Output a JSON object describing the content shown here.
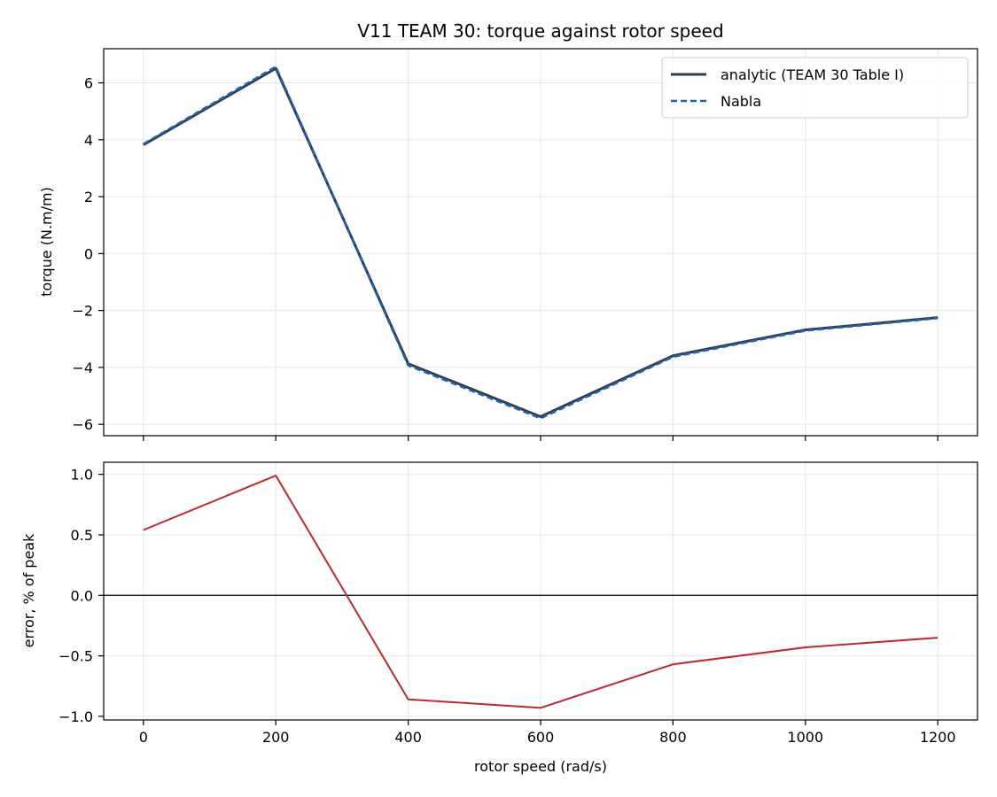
{
  "chart_data": [
    {
      "type": "line",
      "title": "V11 TEAM 30: torque against rotor speed",
      "xlabel": "",
      "ylabel": "torque (N.m/m)",
      "xlim": [
        -60,
        1260
      ],
      "ylim": [
        -6.4,
        7.2
      ],
      "x_ticks": [
        0,
        200,
        400,
        600,
        800,
        1000,
        1200
      ],
      "y_ticks": [
        -6,
        -4,
        -2,
        0,
        2,
        4,
        6
      ],
      "y_tick_labels": [
        "−6",
        "−4",
        "−2",
        "0",
        "2",
        "4",
        "6"
      ],
      "grid": true,
      "legend_position": "top-right",
      "x": [
        0,
        200,
        400,
        600,
        800,
        1000,
        1200
      ],
      "series": [
        {
          "name": "analytic (TEAM 30 Table I)",
          "values": [
            3.82,
            6.51,
            -3.87,
            -5.73,
            -3.59,
            -2.68,
            -2.25
          ],
          "color": "#2f3d4c",
          "style": "solid"
        },
        {
          "name": "Nabla",
          "values": [
            3.85,
            6.57,
            -3.93,
            -5.79,
            -3.63,
            -2.71,
            -2.27
          ],
          "color": "#1f63b5",
          "style": "dashed"
        }
      ]
    },
    {
      "type": "line",
      "title": "",
      "xlabel": "rotor speed (rad/s)",
      "ylabel": "error, % of peak",
      "xlim": [
        -60,
        1260
      ],
      "ylim": [
        -1.03,
        1.1
      ],
      "x_ticks": [
        0,
        200,
        400,
        600,
        800,
        1000,
        1200
      ],
      "x_tick_labels": [
        "0",
        "200",
        "400",
        "600",
        "800",
        "1000",
        "1200"
      ],
      "y_ticks": [
        -1.0,
        -0.5,
        0.0,
        0.5,
        1.0
      ],
      "y_tick_labels": [
        "−1.0",
        "−0.5",
        "0.0",
        "0.5",
        "1.0"
      ],
      "grid": true,
      "reference_line": 0,
      "x": [
        0,
        200,
        400,
        600,
        800,
        1000,
        1200
      ],
      "series": [
        {
          "values": [
            0.54,
            0.99,
            -0.86,
            -0.93,
            -0.57,
            -0.43,
            -0.35
          ],
          "color": "#c0282d",
          "style": "solid"
        }
      ]
    }
  ]
}
